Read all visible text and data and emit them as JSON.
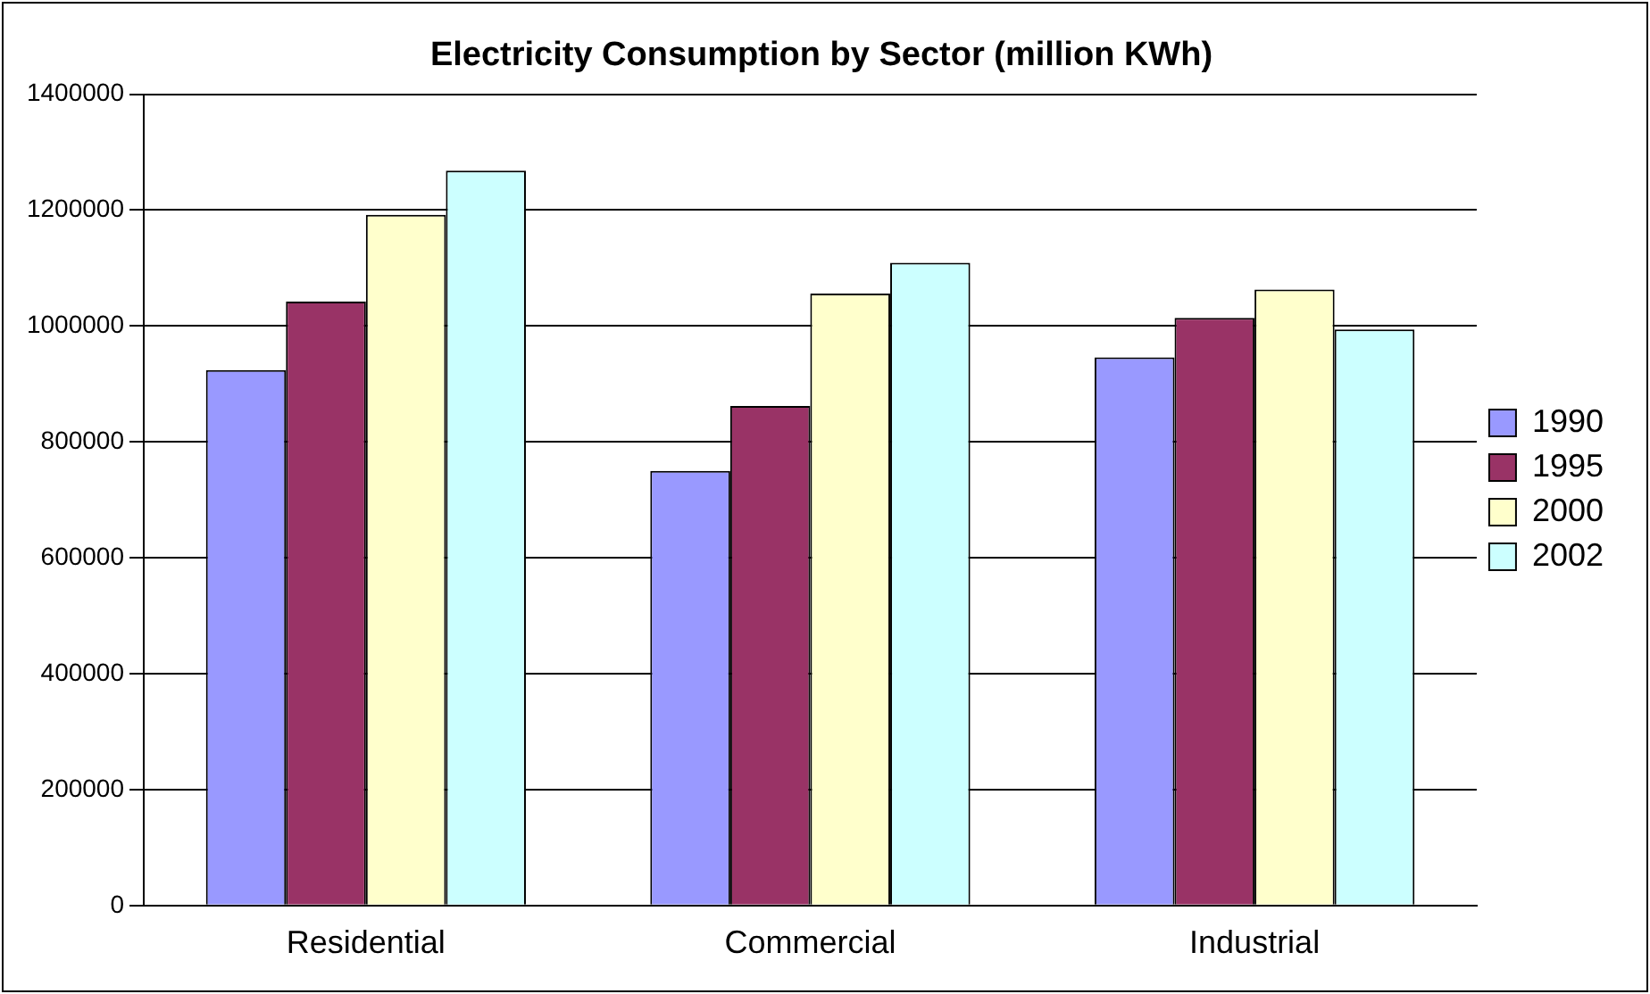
{
  "chart_data": {
    "type": "bar",
    "title": "Electricity Consumption by Sector (million KWh)",
    "categories": [
      "Residential",
      "Commercial",
      "Industrial"
    ],
    "series": [
      {
        "name": "1990",
        "color": "#9999ff",
        "values": [
          924000,
          750000,
          946000
        ]
      },
      {
        "name": "1995",
        "color": "#993366",
        "values": [
          1042000,
          862000,
          1014000
        ]
      },
      {
        "name": "2000",
        "color": "#ffffcc",
        "values": [
          1192000,
          1056000,
          1063000
        ]
      },
      {
        "name": "2002",
        "color": "#ccffff",
        "values": [
          1268000,
          1109000,
          994000
        ]
      }
    ],
    "ylim": [
      0,
      1400000
    ],
    "yticks": [
      0,
      200000,
      400000,
      600000,
      800000,
      1000000,
      1200000,
      1400000
    ],
    "grid": "y",
    "legend": "right"
  }
}
